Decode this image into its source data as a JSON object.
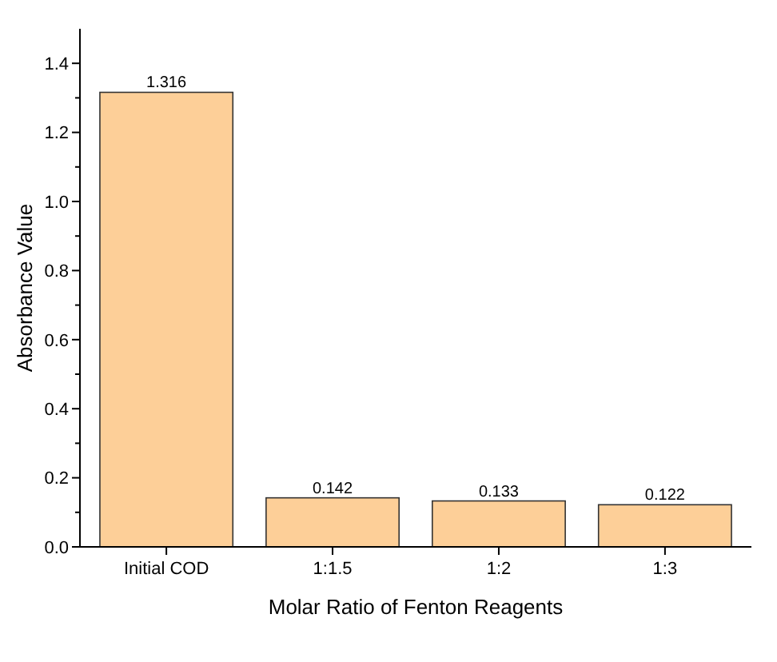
{
  "chart_data": {
    "type": "bar",
    "xlabel": "Molar Ratio of Fenton Reagents",
    "ylabel": "Absorbance Value",
    "categories": [
      "Initial COD",
      "1:1.5",
      "1:2",
      "1:3"
    ],
    "values": [
      1.316,
      0.142,
      0.133,
      0.122
    ],
    "color": "#fdcf98",
    "data_labels": true,
    "ylim": [
      0,
      1.5
    ],
    "yticks": [
      {
        "value": 0,
        "label": "0.0"
      },
      {
        "value": 0.1,
        "label": null
      },
      {
        "value": 0.2,
        "label": "0.2"
      },
      {
        "value": 0.3,
        "label": null
      },
      {
        "value": 0.4,
        "label": "0.4"
      },
      {
        "value": 0.5,
        "label": null
      },
      {
        "value": 0.6,
        "label": "0.6"
      },
      {
        "value": 0.7,
        "label": null
      },
      {
        "value": 0.8,
        "label": "0.8"
      },
      {
        "value": 0.9,
        "label": null
      },
      {
        "value": 1.0,
        "label": "1.0"
      },
      {
        "value": 1.1,
        "label": null
      },
      {
        "value": 1.2,
        "label": "1.2"
      },
      {
        "value": 1.3,
        "label": null
      },
      {
        "value": 1.4,
        "label": "1.4"
      }
    ],
    "grid": false
  }
}
